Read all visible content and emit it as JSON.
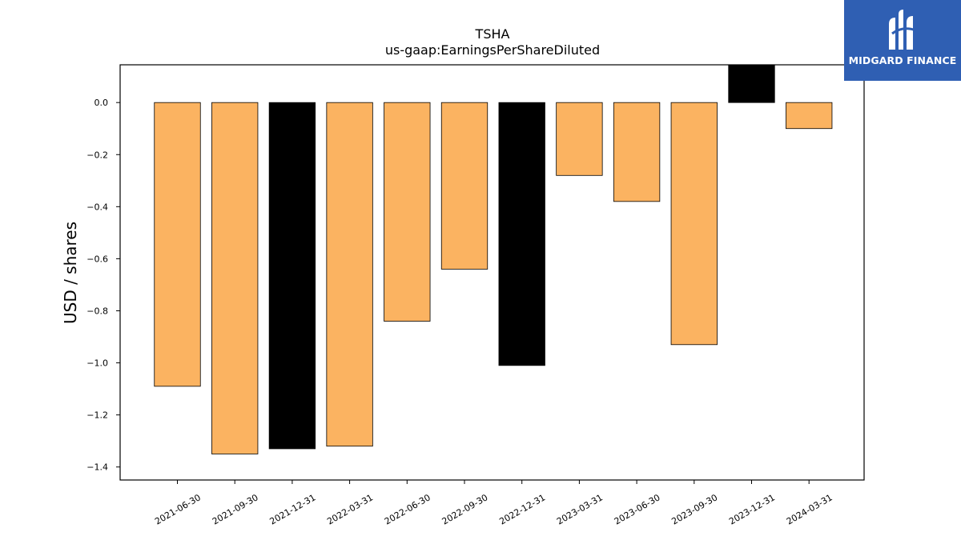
{
  "chart_data": {
    "type": "bar",
    "title": "TSHA",
    "subtitle": "us-gaap:EarningsPerShareDiluted",
    "ylabel": "USD / shares",
    "xlabel": "",
    "ylim": [
      -1.45,
      0.145
    ],
    "yticks": [
      0.0,
      -0.2,
      -0.4,
      -0.6,
      -0.8,
      -1.0,
      -1.2,
      -1.4
    ],
    "categories": [
      "2021-06-30",
      "2021-09-30",
      "2021-12-31",
      "2022-03-31",
      "2022-06-30",
      "2022-09-30",
      "2022-12-31",
      "2023-03-31",
      "2023-06-30",
      "2023-09-30",
      "2023-12-31",
      "2024-03-31"
    ],
    "values": [
      -1.09,
      -1.35,
      -1.33,
      -1.32,
      -0.84,
      -0.64,
      -1.01,
      -0.28,
      -0.38,
      -0.93,
      0.16,
      -0.1
    ],
    "bar_colors": [
      "#fbb361",
      "#fbb361",
      "#000000",
      "#fbb361",
      "#fbb361",
      "#fbb361",
      "#000000",
      "#fbb361",
      "#fbb361",
      "#fbb361",
      "#000000",
      "#fbb361"
    ],
    "grid": false,
    "legend": "none"
  },
  "logo": {
    "text": "MIDGARD FINANCE",
    "background": "#2f5fb3",
    "icon": "midgard-logo-icon"
  }
}
